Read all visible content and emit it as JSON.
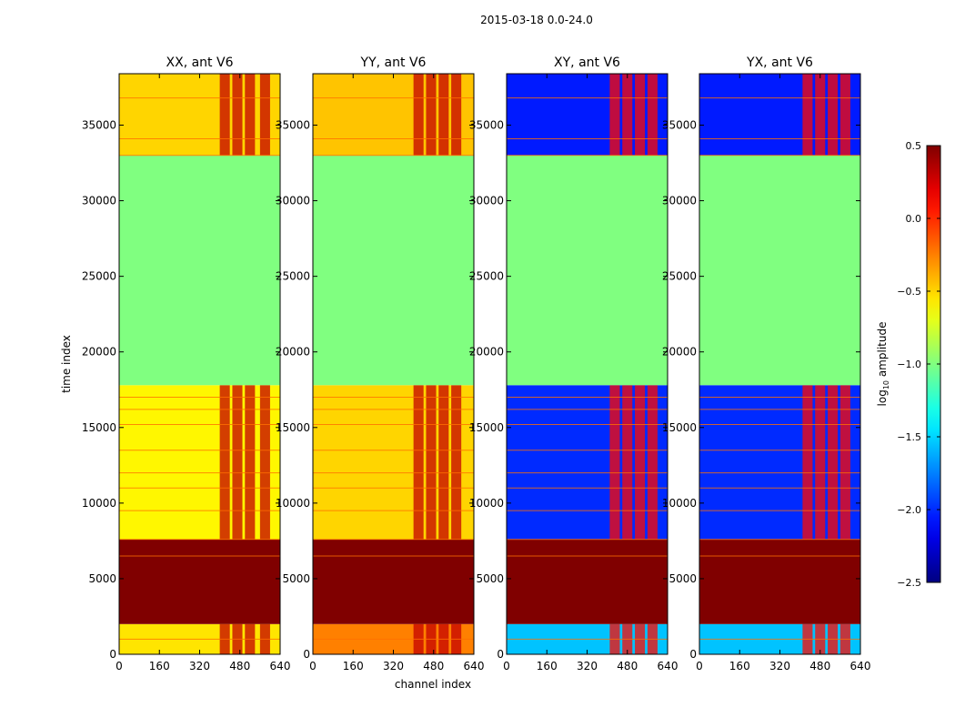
{
  "chart_data": {
    "type": "heatmap",
    "title": "2015-03-18 0.0-24.0",
    "xlabel": "channel index",
    "ylabel": "time index",
    "xlim": [
      0,
      640
    ],
    "ylim": [
      0,
      38400
    ],
    "xticks": [
      "0",
      "160",
      "320",
      "480",
      "640"
    ],
    "yticks": [
      "0",
      "5000",
      "10000",
      "15000",
      "20000",
      "25000",
      "30000",
      "35000"
    ],
    "colorbar": {
      "label": "log10 amplitude",
      "label_base": "log",
      "label_sub": "10",
      "label_rest": " amplitude",
      "range": [
        -2.5,
        0.5
      ],
      "ticks": [
        "0.5",
        "0.0",
        "−0.5",
        "−1.0",
        "−1.5",
        "−2.0",
        "−2.5"
      ],
      "tick_values": [
        0.5,
        0.0,
        -0.5,
        -1.0,
        -1.5,
        -2.0,
        -2.5
      ],
      "colormap": "jet"
    },
    "panels": [
      {
        "title": "XX, ant V6",
        "bands": [
          {
            "t0": 0,
            "t1": 2000,
            "value": -0.55
          },
          {
            "t0": 2000,
            "t1": 7600,
            "value": 0.5
          },
          {
            "t0": 7600,
            "t1": 17800,
            "value": -0.6
          },
          {
            "t0": 17800,
            "t1": 33000,
            "value": -1.0
          },
          {
            "t0": 33000,
            "t1": 38400,
            "value": -0.5
          }
        ],
        "hot_channels": [
          [
            400,
            440
          ],
          [
            450,
            490
          ],
          [
            500,
            540
          ],
          [
            560,
            600
          ]
        ],
        "hot_value": 0.3
      },
      {
        "title": "YY, ant V6",
        "bands": [
          {
            "t0": 0,
            "t1": 2000,
            "value": -0.25
          },
          {
            "t0": 2000,
            "t1": 7600,
            "value": 0.5
          },
          {
            "t0": 7600,
            "t1": 17800,
            "value": -0.5
          },
          {
            "t0": 17800,
            "t1": 33000,
            "value": -1.0
          },
          {
            "t0": 33000,
            "t1": 38400,
            "value": -0.45
          }
        ],
        "hot_channels": [
          [
            400,
            440
          ],
          [
            450,
            490
          ],
          [
            500,
            540
          ],
          [
            550,
            590
          ]
        ],
        "hot_value": 0.3
      },
      {
        "title": "XY, ant V6",
        "bands": [
          {
            "t0": 0,
            "t1": 2000,
            "value": -1.55
          },
          {
            "t0": 2000,
            "t1": 7600,
            "value": 0.5
          },
          {
            "t0": 7600,
            "t1": 17800,
            "value": -2.0
          },
          {
            "t0": 17800,
            "t1": 33000,
            "value": -1.0
          },
          {
            "t0": 33000,
            "t1": 38400,
            "value": -2.05
          }
        ],
        "hot_channels": [
          [
            410,
            450
          ],
          [
            460,
            500
          ],
          [
            510,
            550
          ],
          [
            560,
            600
          ]
        ],
        "hot_value": 0.1
      },
      {
        "title": "YX, ant V6",
        "bands": [
          {
            "t0": 0,
            "t1": 2000,
            "value": -1.55
          },
          {
            "t0": 2000,
            "t1": 7600,
            "value": 0.5
          },
          {
            "t0": 7600,
            "t1": 17800,
            "value": -2.0
          },
          {
            "t0": 17800,
            "t1": 33000,
            "value": -1.0
          },
          {
            "t0": 33000,
            "t1": 38400,
            "value": -2.05
          }
        ],
        "hot_channels": [
          [
            410,
            450
          ],
          [
            460,
            500
          ],
          [
            510,
            550
          ],
          [
            560,
            600
          ]
        ],
        "hot_value": 0.1
      }
    ]
  }
}
